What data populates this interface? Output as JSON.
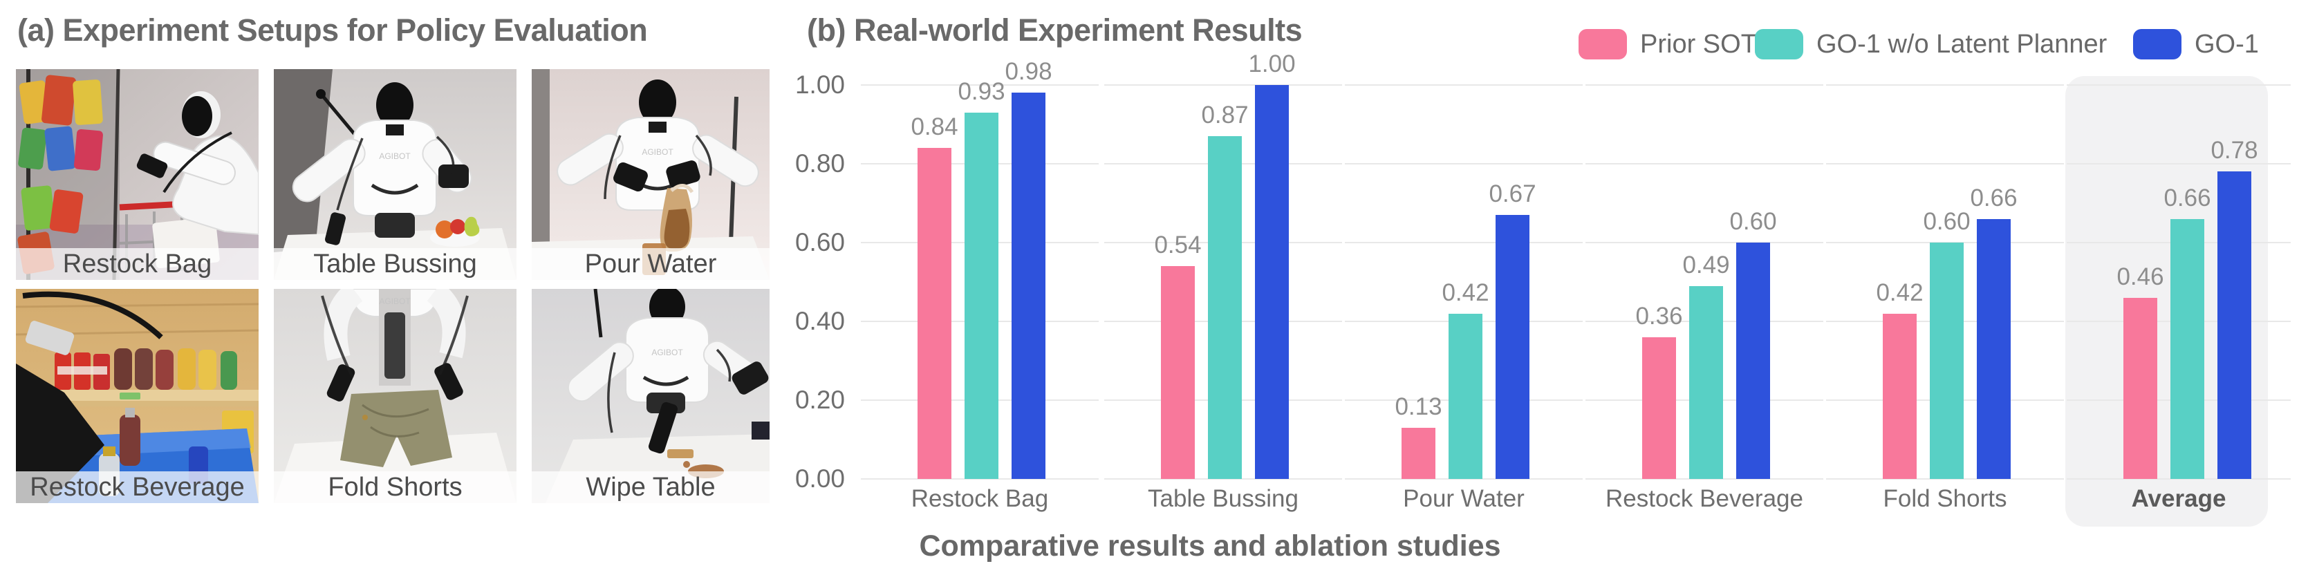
{
  "figure": {
    "panel_a": {
      "title": "(a) Experiment Setups for Policy Evaluation",
      "photos": [
        {
          "label": "Restock Bag"
        },
        {
          "label": "Table Bussing"
        },
        {
          "label": "Pour Water"
        },
        {
          "label": "Restock Beverage"
        },
        {
          "label": "Fold Shorts"
        },
        {
          "label": "Wipe Table"
        }
      ],
      "robot_logo": "AGIBOT"
    },
    "panel_b": {
      "title": "(b) Real-world Experiment Results",
      "caption": "Comparative results and ablation studies"
    }
  },
  "chart_data": {
    "type": "bar",
    "title": "(b) Real-world Experiment Results",
    "categories": [
      "Restock Bag",
      "Table Bussing",
      "Pour Water",
      "Restock Beverage",
      "Fold Shorts",
      "Average"
    ],
    "series": [
      {
        "name": "Prior SOTA",
        "color": "#F8789B",
        "values": [
          0.84,
          0.54,
          0.13,
          0.36,
          0.42,
          0.46
        ]
      },
      {
        "name": "GO-1 w/o Latent Planner",
        "color": "#58D0C5",
        "values": [
          0.93,
          0.87,
          0.42,
          0.49,
          0.6,
          0.66
        ]
      },
      {
        "name": "GO-1",
        "color": "#2E52DC",
        "values": [
          0.98,
          1.0,
          0.67,
          0.6,
          0.66,
          0.78
        ]
      }
    ],
    "xlabel": "",
    "ylabel": "",
    "ylim": [
      0,
      1
    ],
    "yticks": [
      "0.00",
      "0.20",
      "0.40",
      "0.60",
      "0.80",
      "1.00"
    ],
    "grid": "horizontal",
    "legend_position": "top-right",
    "highlight_category": "Average",
    "value_labels": true
  }
}
